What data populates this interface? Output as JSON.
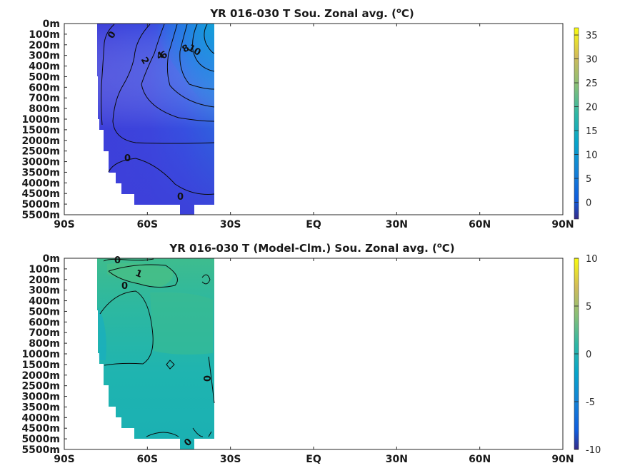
{
  "chart_data": [
    {
      "type": "heatmap",
      "title_pre": "YR 016-030 T Sou. Zonal avg. (",
      "title_sup": "o",
      "title_post": "C)",
      "x_ticks": [
        "90S",
        "60S",
        "30S",
        "EQ",
        "30N",
        "60N",
        "90N"
      ],
      "x_range": [
        -90,
        90
      ],
      "y_ticks": [
        "0m",
        "100m",
        "200m",
        "300m",
        "400m",
        "500m",
        "600m",
        "700m",
        "800m",
        "1000m",
        "1500m",
        "2000m",
        "2500m",
        "3000m",
        "3500m",
        "4000m",
        "4500m",
        "5000m",
        "5500m"
      ],
      "colorbar": {
        "ticks": [
          35,
          30,
          25,
          20,
          15,
          10,
          5,
          0
        ],
        "range": [
          -3.5,
          36.5
        ]
      },
      "data_extent_lat": [
        -78,
        -35
      ],
      "contour_labels": [
        "0",
        "2",
        "4",
        "6",
        "8",
        "10",
        "0",
        "0"
      ]
    },
    {
      "type": "heatmap",
      "title_pre": "YR 016-030 T (Model-Clm.) Sou. Zonal avg. (",
      "title_sup": "o",
      "title_post": "C)",
      "x_ticks": [
        "90S",
        "60S",
        "30S",
        "EQ",
        "30N",
        "60N",
        "90N"
      ],
      "x_range": [
        -90,
        90
      ],
      "y_ticks": [
        "0m",
        "100m",
        "200m",
        "300m",
        "400m",
        "500m",
        "600m",
        "700m",
        "800m",
        "1000m",
        "1500m",
        "2000m",
        "2500m",
        "3000m",
        "3500m",
        "4000m",
        "4500m",
        "5000m",
        "5500m"
      ],
      "colorbar": {
        "ticks": [
          10,
          5,
          0,
          -5,
          -10
        ],
        "range": [
          -10,
          10
        ]
      },
      "data_extent_lat": [
        -78,
        -35
      ],
      "contour_labels": [
        "0",
        "1",
        "0",
        "0",
        "0"
      ]
    }
  ]
}
